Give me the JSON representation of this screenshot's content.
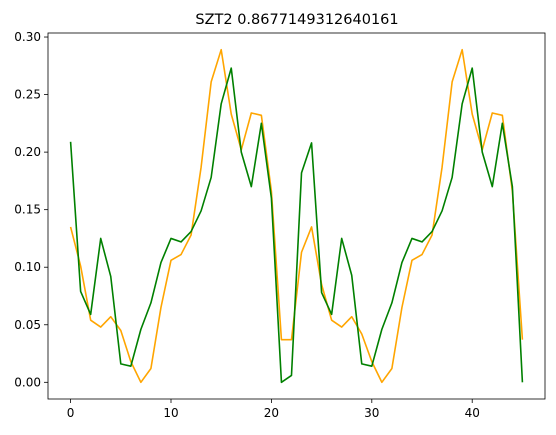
{
  "chart_data": {
    "type": "line",
    "title": "SZT2 0.8677149312640161",
    "xlabel": "",
    "ylabel": "",
    "xlim": [
      -2.25,
      47.25
    ],
    "ylim": [
      -0.0145,
      0.3035
    ],
    "xticks": [
      0,
      10,
      20,
      30,
      40
    ],
    "yticks": [
      0.0,
      0.05,
      0.1,
      0.15,
      0.2,
      0.25,
      0.3
    ],
    "ytick_labels": [
      "0.00",
      "0.05",
      "0.10",
      "0.15",
      "0.20",
      "0.25",
      "0.30"
    ],
    "grid": false,
    "legend": null,
    "series": [
      {
        "color": "#FFA500",
        "x": [
          0,
          1,
          2,
          3,
          4,
          5,
          6,
          7,
          8,
          9,
          10,
          11,
          12,
          13,
          14,
          15,
          16,
          17,
          18,
          19,
          20,
          21,
          22,
          23,
          24,
          25,
          26,
          27,
          28,
          29,
          30,
          31,
          32,
          33,
          34,
          35,
          36,
          37,
          38,
          39,
          40,
          41,
          42,
          43,
          44,
          45
        ],
        "y": [
          0.135,
          0.101,
          0.054,
          0.048,
          0.057,
          0.045,
          0.018,
          0.0,
          0.012,
          0.065,
          0.106,
          0.111,
          0.128,
          0.187,
          0.261,
          0.289,
          0.233,
          0.202,
          0.234,
          0.232,
          0.166,
          0.037,
          0.037,
          0.113,
          0.135,
          0.085,
          0.054,
          0.048,
          0.057,
          0.042,
          0.018,
          0.0,
          0.012,
          0.065,
          0.106,
          0.111,
          0.128,
          0.187,
          0.261,
          0.289,
          0.233,
          0.202,
          0.234,
          0.232,
          0.166,
          0.037
        ]
      },
      {
        "color": "#008000",
        "x": [
          0,
          1,
          2,
          3,
          4,
          5,
          6,
          7,
          8,
          9,
          10,
          11,
          12,
          13,
          14,
          15,
          16,
          17,
          18,
          19,
          20,
          21,
          22,
          23,
          24,
          25,
          26,
          27,
          28,
          29,
          30,
          31,
          32,
          33,
          34,
          35,
          36,
          37,
          38,
          39,
          40,
          41,
          42,
          43,
          44,
          45
        ],
        "y": [
          0.209,
          0.079,
          0.059,
          0.125,
          0.092,
          0.016,
          0.014,
          0.046,
          0.069,
          0.104,
          0.125,
          0.122,
          0.131,
          0.149,
          0.178,
          0.242,
          0.273,
          0.2,
          0.17,
          0.225,
          0.16,
          0.0,
          0.006,
          0.182,
          0.208,
          0.078,
          0.059,
          0.125,
          0.093,
          0.016,
          0.014,
          0.046,
          0.069,
          0.104,
          0.125,
          0.122,
          0.131,
          0.149,
          0.178,
          0.242,
          0.273,
          0.2,
          0.17,
          0.225,
          0.17,
          0.0
        ]
      }
    ]
  }
}
